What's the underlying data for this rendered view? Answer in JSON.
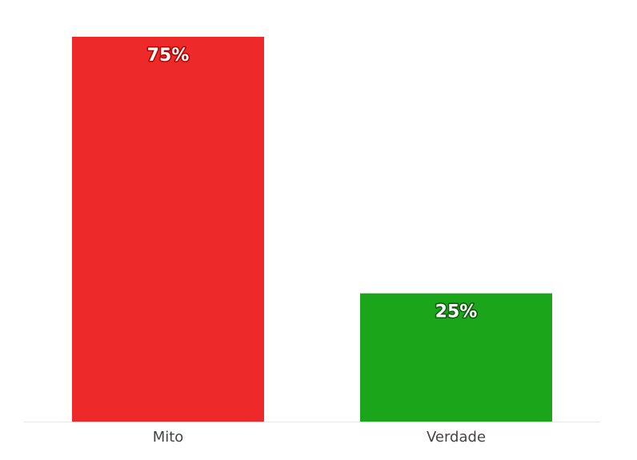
{
  "chart_data": {
    "type": "bar",
    "categories": [
      "Mito",
      "Verdade"
    ],
    "values": [
      75,
      25
    ],
    "value_labels": [
      "75%",
      "25%"
    ],
    "colors": [
      "#ee2929",
      "#1ba51b"
    ],
    "label_outline_colors": [
      "#b00000",
      "#0a5a0a"
    ]
  }
}
